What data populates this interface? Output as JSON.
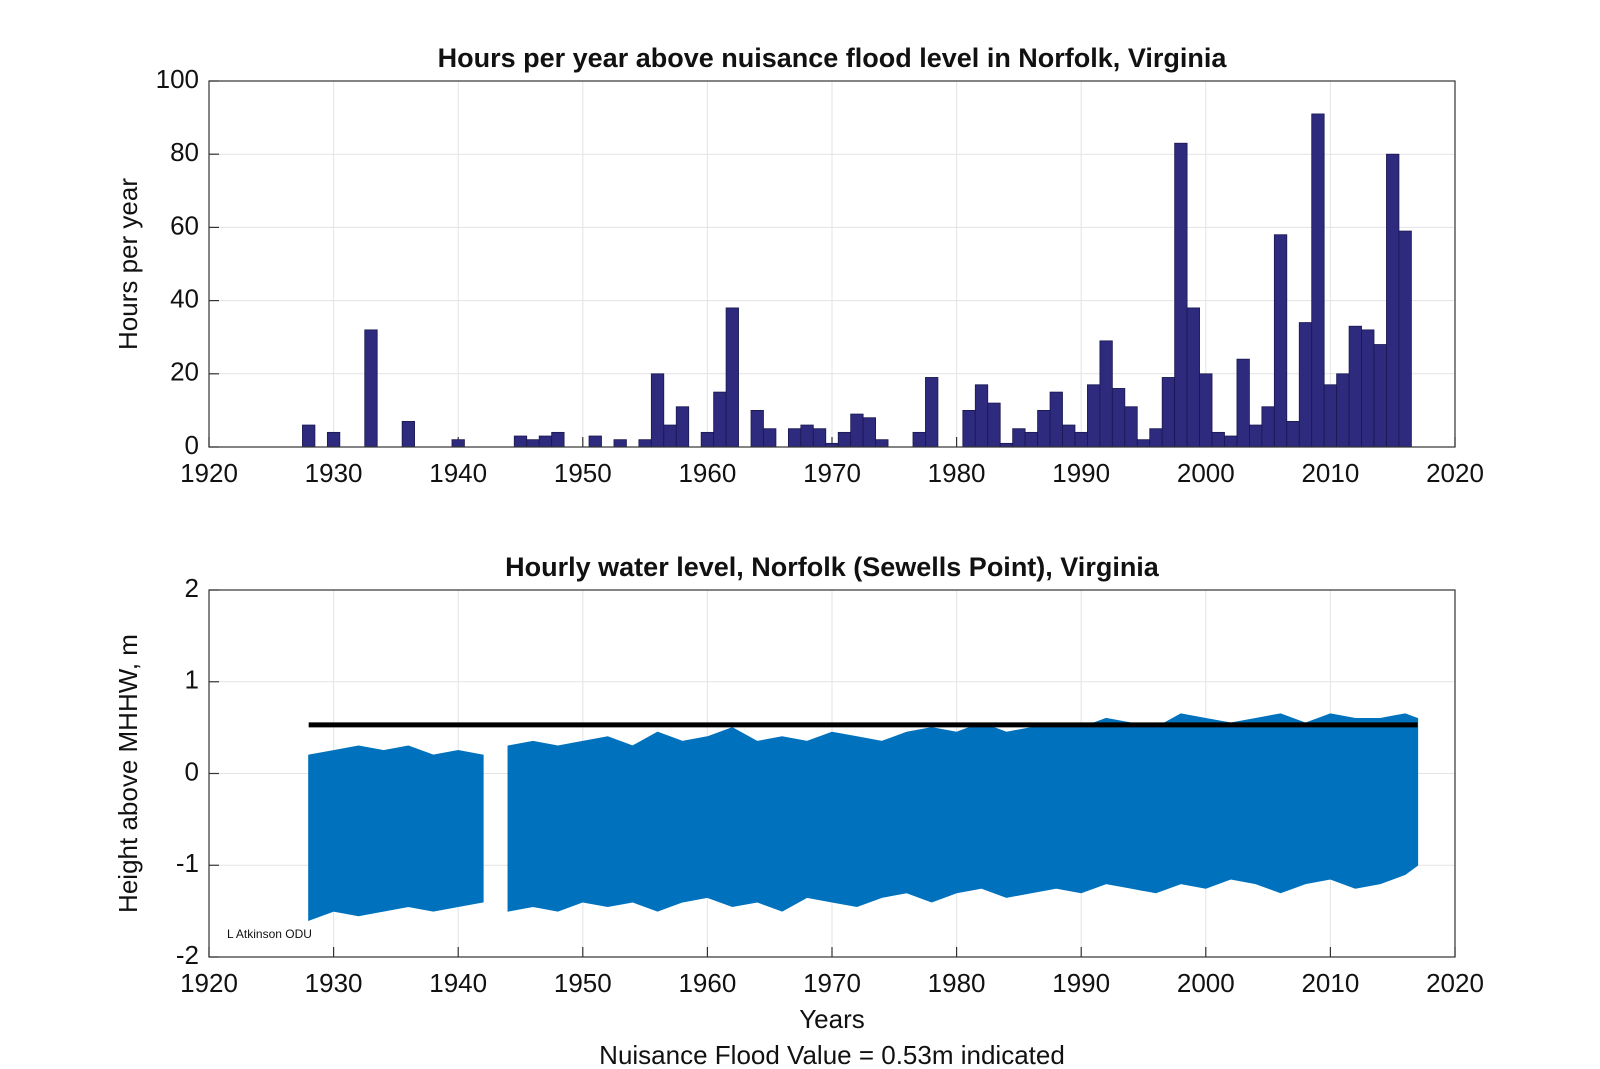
{
  "chart_data": [
    {
      "type": "bar",
      "title": "Hours per year above nuisance flood level in Norfolk, Virginia",
      "ylabel": "Hours per year",
      "x": [
        1928,
        1930,
        1933,
        1936,
        1940,
        1945,
        1946,
        1947,
        1948,
        1951,
        1953,
        1955,
        1956,
        1957,
        1958,
        1960,
        1961,
        1962,
        1964,
        1965,
        1967,
        1968,
        1969,
        1970,
        1971,
        1972,
        1973,
        1974,
        1977,
        1978,
        1981,
        1982,
        1983,
        1984,
        1985,
        1986,
        1987,
        1988,
        1989,
        1990,
        1991,
        1992,
        1993,
        1994,
        1995,
        1996,
        1997,
        1998,
        1999,
        2000,
        2001,
        2002,
        2003,
        2004,
        2005,
        2006,
        2007,
        2008,
        2009,
        2010,
        2011,
        2012,
        2013,
        2014,
        2015,
        2016
      ],
      "values": [
        6,
        4,
        32,
        7,
        2,
        3,
        2,
        3,
        4,
        3,
        2,
        2,
        20,
        6,
        11,
        4,
        15,
        38,
        10,
        5,
        5,
        6,
        5,
        1,
        4,
        9,
        8,
        2,
        4,
        19,
        10,
        17,
        12,
        1,
        5,
        4,
        10,
        15,
        6,
        4,
        17,
        29,
        16,
        11,
        2,
        5,
        19,
        83,
        38,
        20,
        4,
        3,
        24,
        6,
        11,
        58,
        7,
        34,
        91,
        17,
        20,
        33,
        32,
        28,
        80,
        59
      ],
      "color": "#2e2a7e",
      "xlim": [
        1920,
        2020
      ],
      "xticks": [
        1920,
        1930,
        1940,
        1950,
        1960,
        1970,
        1980,
        1990,
        2000,
        2010,
        2020
      ],
      "ylim": [
        0,
        100
      ],
      "yticks": [
        0,
        20,
        40,
        60,
        80,
        100
      ],
      "grid": true
    },
    {
      "type": "band",
      "title": "Hourly water level, Norfolk (Sewells Point), Virginia",
      "ylabel": "Height above MHHW, m",
      "xlabel": "Years",
      "note": "Nuisance Flood Value = 0.53m indicated",
      "annotation": "L Atkinson ODU",
      "x": [
        1928,
        1930,
        1932,
        1934,
        1936,
        1938,
        1940,
        1942,
        1943,
        1944,
        1946,
        1948,
        1950,
        1952,
        1954,
        1956,
        1958,
        1960,
        1962,
        1964,
        1966,
        1968,
        1970,
        1972,
        1974,
        1976,
        1978,
        1980,
        1982,
        1984,
        1986,
        1988,
        1990,
        1992,
        1994,
        1996,
        1998,
        2000,
        2002,
        2004,
        2006,
        2008,
        2010,
        2012,
        2014,
        2016,
        2017
      ],
      "upper": [
        0.2,
        0.25,
        0.3,
        0.25,
        0.3,
        0.2,
        0.25,
        0.2,
        null,
        0.3,
        0.35,
        0.3,
        0.35,
        0.4,
        0.3,
        0.45,
        0.35,
        0.4,
        0.5,
        0.35,
        0.4,
        0.35,
        0.45,
        0.4,
        0.35,
        0.45,
        0.5,
        0.45,
        0.55,
        0.45,
        0.5,
        0.55,
        0.5,
        0.6,
        0.55,
        0.5,
        0.65,
        0.6,
        0.55,
        0.6,
        0.65,
        0.55,
        0.65,
        0.6,
        0.6,
        0.65,
        0.6
      ],
      "lower": [
        -1.6,
        -1.5,
        -1.55,
        -1.5,
        -1.45,
        -1.5,
        -1.45,
        -1.4,
        null,
        -1.5,
        -1.45,
        -1.5,
        -1.4,
        -1.45,
        -1.4,
        -1.5,
        -1.4,
        -1.35,
        -1.45,
        -1.4,
        -1.5,
        -1.35,
        -1.4,
        -1.45,
        -1.35,
        -1.3,
        -1.4,
        -1.3,
        -1.25,
        -1.35,
        -1.3,
        -1.25,
        -1.3,
        -1.2,
        -1.25,
        -1.3,
        -1.2,
        -1.25,
        -1.15,
        -1.2,
        -1.3,
        -1.2,
        -1.15,
        -1.25,
        -1.2,
        -1.1,
        -1.0
      ],
      "color": "#0072bd",
      "hline": {
        "y": 0.53,
        "x": [
          1928,
          2017
        ],
        "color": "#000000"
      },
      "xlim": [
        1920,
        2020
      ],
      "xticks": [
        1920,
        1930,
        1940,
        1950,
        1960,
        1970,
        1980,
        1990,
        2000,
        2010,
        2020
      ],
      "ylim": [
        -2,
        2
      ],
      "yticks": [
        -2,
        -1,
        0,
        1,
        2
      ],
      "grid": true
    }
  ]
}
